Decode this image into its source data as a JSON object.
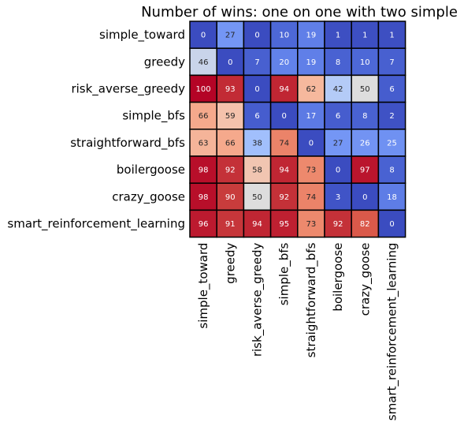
{
  "chart_data": {
    "type": "heatmap",
    "title": "Number of wins: one on one with two simple",
    "xlabel": "",
    "ylabel": "",
    "rows": [
      "simple_toward",
      "greedy",
      "risk_averse_greedy",
      "simple_bfs",
      "straightforward_bfs",
      "boilergoose",
      "crazy_goose",
      "smart_reinforcement_learning"
    ],
    "columns": [
      "simple_toward",
      "greedy",
      "risk_averse_greedy",
      "simple_bfs",
      "straightforward_bfs",
      "boilergoose",
      "crazy_goose",
      "smart_reinforcement_learning"
    ],
    "values": [
      [
        0,
        27,
        0,
        10,
        19,
        1,
        1,
        1
      ],
      [
        46,
        0,
        7,
        20,
        19,
        8,
        10,
        7
      ],
      [
        100,
        93,
        0,
        94,
        62,
        42,
        50,
        6
      ],
      [
        66,
        59,
        6,
        0,
        17,
        6,
        8,
        2
      ],
      [
        63,
        66,
        38,
        74,
        0,
        27,
        26,
        25
      ],
      [
        98,
        92,
        58,
        94,
        73,
        0,
        97,
        8
      ],
      [
        98,
        90,
        50,
        92,
        74,
        3,
        0,
        18
      ],
      [
        96,
        91,
        94,
        95,
        73,
        92,
        82,
        0
      ]
    ],
    "value_range": [
      0,
      100
    ],
    "colormap": "coolwarm",
    "cell_borders": true,
    "annotations": true,
    "legend": "none"
  }
}
